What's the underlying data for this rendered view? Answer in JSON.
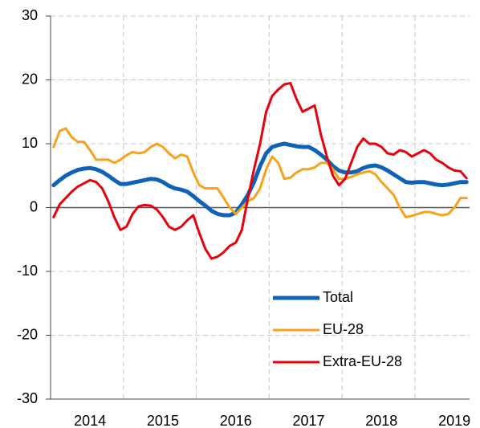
{
  "chart_data": {
    "type": "line",
    "categories": [
      null,
      null,
      null,
      null,
      null,
      null,
      "2014",
      null,
      null,
      null,
      null,
      null,
      null,
      null,
      null,
      null,
      null,
      null,
      "2015",
      null,
      null,
      null,
      null,
      null,
      null,
      null,
      null,
      null,
      null,
      null,
      "2016",
      null,
      null,
      null,
      null,
      null,
      null,
      null,
      null,
      null,
      null,
      null,
      "2017",
      null,
      null,
      null,
      null,
      null,
      null,
      null,
      null,
      null,
      null,
      null,
      "2018",
      null,
      null,
      null,
      null,
      null,
      null,
      null,
      null,
      null,
      null,
      null,
      "2019",
      null,
      null
    ],
    "series": [
      {
        "name": "Total",
        "color": "#0f62b8",
        "width": 5,
        "values": [
          3.5,
          4.3,
          5,
          5.5,
          5.9,
          6.1,
          6.2,
          6,
          5.6,
          5,
          4.3,
          3.7,
          3.7,
          3.9,
          4.1,
          4.3,
          4.5,
          4.4,
          4,
          3.4,
          3,
          2.8,
          2.5,
          1.8,
          1,
          0.3,
          -0.5,
          -1,
          -1.2,
          -1.2,
          -0.8,
          0.5,
          2,
          4,
          6.5,
          8.5,
          9.5,
          9.8,
          10,
          9.8,
          9.6,
          9.5,
          9.5,
          9,
          8.3,
          7.5,
          6.5,
          5.8,
          5.5,
          5.5,
          5.7,
          6.2,
          6.5,
          6.6,
          6.3,
          5.8,
          5.2,
          4.6,
          4,
          3.9,
          4,
          4,
          3.8,
          3.6,
          3.5,
          3.6,
          3.8,
          4,
          4
        ]
      },
      {
        "name": "EU-28",
        "color": "#f9a11b",
        "width": 3,
        "values": [
          9.5,
          12,
          12.4,
          11,
          10.3,
          10.3,
          9,
          7.5,
          7.5,
          7.5,
          7,
          7.5,
          8.2,
          8.7,
          8.5,
          8.7,
          9.5,
          10,
          9.5,
          8.5,
          7.7,
          8.3,
          8,
          5.5,
          3.5,
          3,
          3,
          3,
          1.5,
          0,
          -1,
          0,
          1,
          1.5,
          3,
          6,
          8,
          7,
          4.5,
          4.7,
          5.5,
          6,
          6,
          6.3,
          7,
          7,
          6,
          4.5,
          4.5,
          4.8,
          5.2,
          5.5,
          5.7,
          5.2,
          4,
          3,
          2,
          0,
          -1.5,
          -1.3,
          -1,
          -0.7,
          -0.7,
          -1,
          -1.2,
          -1,
          0,
          1.5,
          1.5
        ]
      },
      {
        "name": "Extra-EU-28",
        "color": "#e8000b",
        "width": 3,
        "values": [
          -1.5,
          0.5,
          1.5,
          2.5,
          3.3,
          3.8,
          4.3,
          4,
          3,
          1,
          -1.5,
          -3.5,
          -3,
          -1,
          0.2,
          0.4,
          0.3,
          -0.3,
          -1.5,
          -3,
          -3.5,
          -3,
          -2,
          -1.2,
          -4,
          -6.5,
          -8,
          -7.7,
          -7,
          -6,
          -5.5,
          -3.5,
          1.5,
          6,
          10,
          15,
          17.5,
          18.5,
          19.3,
          19.5,
          17,
          15,
          15.5,
          16,
          11.5,
          8,
          5,
          3.5,
          4.5,
          7,
          9.5,
          10.8,
          10,
          10,
          9.5,
          8.5,
          8.3,
          9,
          8.7,
          8,
          8.5,
          9,
          8.5,
          7.5,
          7,
          6.3,
          5.8,
          5.7,
          4.6
        ]
      }
    ],
    "ylim": [
      -30,
      30
    ],
    "yticks": [
      -30,
      -20,
      -10,
      0,
      10,
      20,
      30
    ],
    "grid": true
  }
}
